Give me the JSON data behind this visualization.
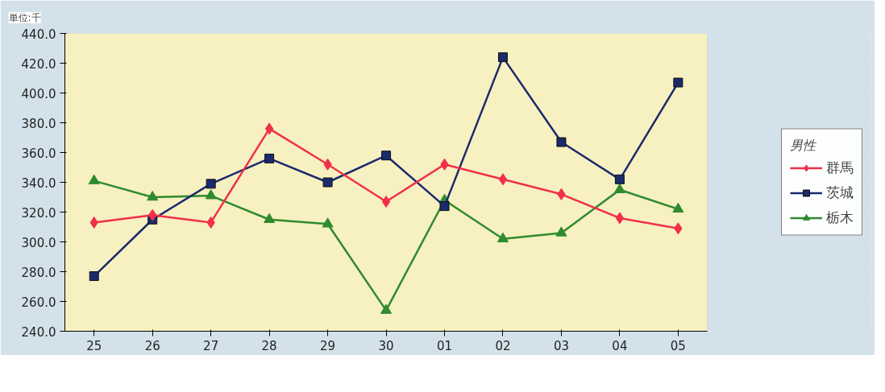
{
  "chart_data": {
    "type": "line",
    "legend_title": "男性",
    "annotations": [
      "単位:千"
    ],
    "categories": [
      "25",
      "26",
      "27",
      "28",
      "29",
      "30",
      "01",
      "02",
      "03",
      "04",
      "05"
    ],
    "series": [
      {
        "name": "群馬",
        "color": "#f0304a",
        "marker": "diamond",
        "values": [
          313,
          318,
          313,
          376,
          352,
          327,
          352,
          342,
          332,
          316,
          309
        ]
      },
      {
        "name": "茨城",
        "color": "#1a2a6c",
        "marker": "square",
        "values": [
          277,
          315,
          339,
          356,
          340,
          358,
          324,
          424,
          367,
          342,
          407
        ]
      },
      {
        "name": "栃木",
        "color": "#2e8b2e",
        "marker": "triangle",
        "values": [
          341,
          330,
          331,
          315,
          312,
          254,
          328,
          302,
          306,
          335,
          322
        ]
      }
    ],
    "ylim": [
      240,
      440
    ],
    "yticks": [
      {
        "value": 240,
        "label": "240.0"
      },
      {
        "value": 260,
        "label": "260.0"
      },
      {
        "value": 280,
        "label": "280.0"
      },
      {
        "value": 300,
        "label": "300.0"
      },
      {
        "value": 320,
        "label": "320.0"
      },
      {
        "value": 340,
        "label": "340.0"
      },
      {
        "value": 360,
        "label": "360.0"
      },
      {
        "value": 380,
        "label": "380.0"
      },
      {
        "value": 400,
        "label": "400.0"
      },
      {
        "value": 420,
        "label": "420.0"
      },
      {
        "value": 440,
        "label": "440.0"
      }
    ],
    "grid": "y",
    "legend": "right"
  }
}
